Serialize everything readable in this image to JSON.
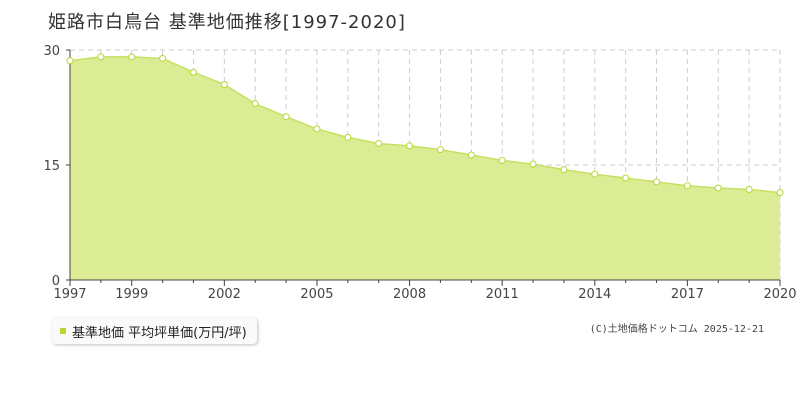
{
  "title": "姫路市白鳥台  基準地価推移[1997-2020]",
  "legend_label": "基準地価 平均坪単価(万円/坪)",
  "credit": "(C)土地価格ドットコム 2025-12-21",
  "colors": {
    "area_fill": "#dcec94",
    "line": "#c5e063",
    "marker_stroke": "#b5d832",
    "grid": "#cccccc",
    "axis": "#444444"
  },
  "chart_data": {
    "type": "area",
    "title": "姫路市白鳥台  基準地価推移[1997-2020]",
    "xlabel": "",
    "ylabel": "",
    "ylim": [
      0,
      30
    ],
    "xlim": [
      1997,
      2020
    ],
    "yticks": [
      "0",
      "15",
      "30"
    ],
    "xticks": [
      "1997",
      "1999",
      "2002",
      "2005",
      "2008",
      "2011",
      "2014",
      "2017",
      "2020"
    ],
    "grid": true,
    "legend_position": "bottom-left",
    "series": [
      {
        "name": "基準地価 平均坪単価(万円/坪)",
        "x": [
          1997,
          1998,
          1999,
          2000,
          2001,
          2002,
          2003,
          2004,
          2005,
          2006,
          2007,
          2008,
          2009,
          2010,
          2011,
          2012,
          2013,
          2014,
          2015,
          2016,
          2017,
          2018,
          2019,
          2020
        ],
        "values": [
          28.6,
          29.1,
          29.1,
          28.9,
          27.1,
          25.5,
          23.0,
          21.3,
          19.7,
          18.6,
          17.8,
          17.5,
          17.0,
          16.3,
          15.6,
          15.1,
          14.4,
          13.8,
          13.3,
          12.8,
          12.3,
          12.0,
          11.8,
          11.4
        ]
      }
    ]
  }
}
